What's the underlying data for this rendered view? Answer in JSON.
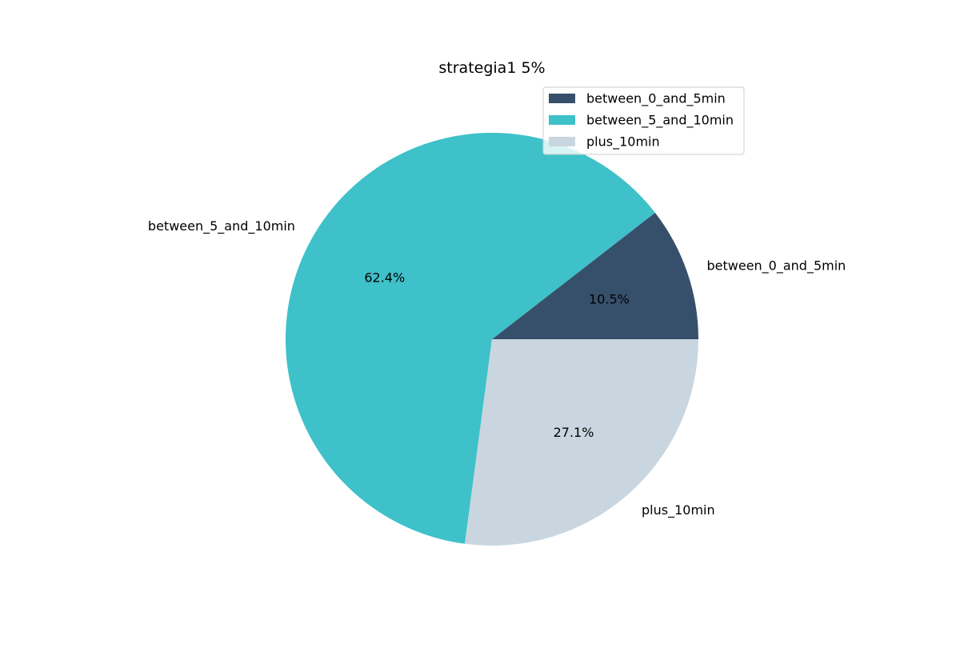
{
  "chart_data": {
    "type": "pie",
    "title": "strategia1 5%",
    "categories": [
      "between_0_and_5min",
      "between_5_and_10min",
      "plus_10min"
    ],
    "values": [
      10.5,
      62.4,
      27.1
    ],
    "value_labels": [
      "10.5%",
      "62.4%",
      "27.1%"
    ],
    "colors": [
      "#36506b",
      "#3ec1c9",
      "#c9d6df"
    ],
    "start_angle_deg": 0,
    "direction": "counterclockwise",
    "legend": {
      "placement": "top-right",
      "entries": [
        "between_0_and_5min",
        "between_5_and_10min",
        "plus_10min"
      ]
    }
  }
}
